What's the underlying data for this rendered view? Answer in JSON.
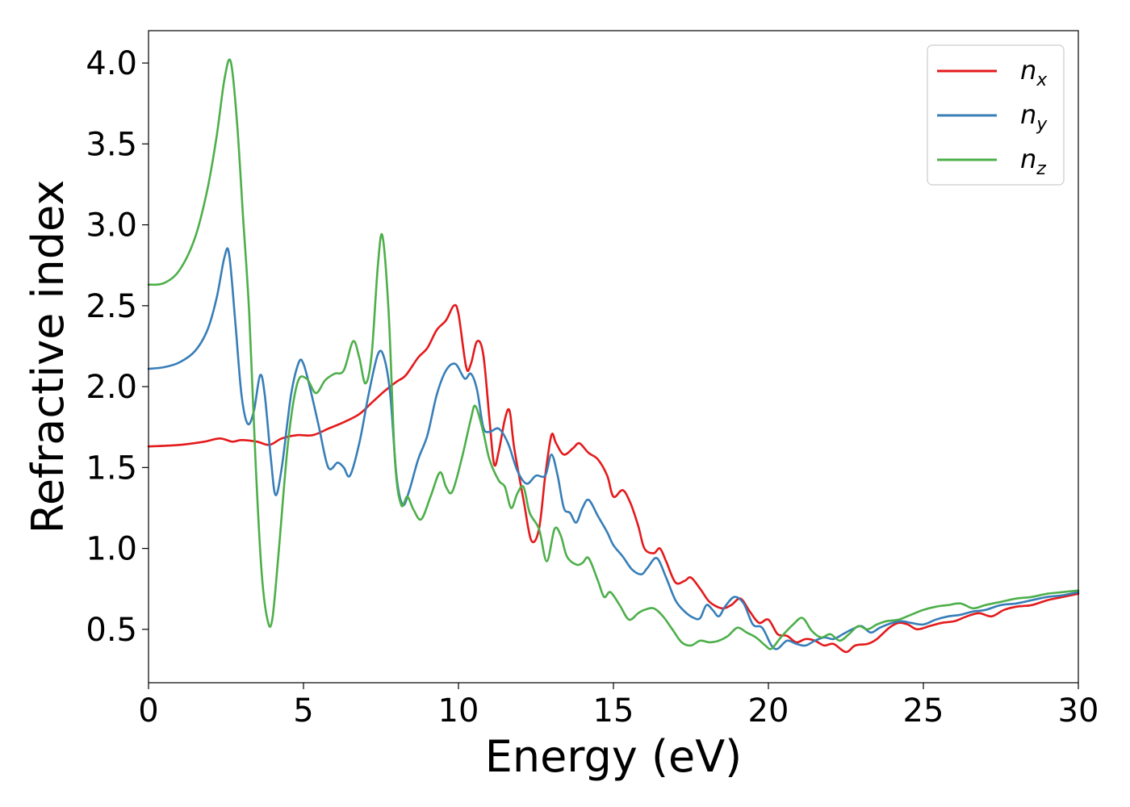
{
  "chart_data": {
    "type": "line",
    "title": "",
    "xlabel": "Energy (eV)",
    "ylabel": "Refractive index",
    "xlim": [
      0,
      30
    ],
    "ylim": [
      0.17,
      4.2
    ],
    "xticks": [
      0,
      5,
      10,
      15,
      20,
      25,
      30
    ],
    "xtick_labels": [
      "0",
      "5",
      "10",
      "15",
      "20",
      "25",
      "30"
    ],
    "yticks": [
      0.5,
      1.0,
      1.5,
      2.0,
      2.5,
      3.0,
      3.5,
      4.0
    ],
    "ytick_labels": [
      "0.5",
      "1.0",
      "1.5",
      "2.0",
      "2.5",
      "3.0",
      "3.5",
      "4.0"
    ],
    "grid": false,
    "legend_position": "top-right",
    "series": [
      {
        "name": "n_x",
        "legend_main": "n",
        "legend_sub": "x",
        "color": "#e41a1c",
        "points": [
          [
            0,
            1.63
          ],
          [
            1,
            1.64
          ],
          [
            1.8,
            1.66
          ],
          [
            2.3,
            1.68
          ],
          [
            2.7,
            1.66
          ],
          [
            3.0,
            1.67
          ],
          [
            3.5,
            1.66
          ],
          [
            3.9,
            1.64
          ],
          [
            4.3,
            1.68
          ],
          [
            4.8,
            1.7
          ],
          [
            5.3,
            1.7
          ],
          [
            5.8,
            1.74
          ],
          [
            6.3,
            1.78
          ],
          [
            6.8,
            1.83
          ],
          [
            7.2,
            1.9
          ],
          [
            7.6,
            1.97
          ],
          [
            8.0,
            2.03
          ],
          [
            8.3,
            2.07
          ],
          [
            8.7,
            2.18
          ],
          [
            9.0,
            2.24
          ],
          [
            9.3,
            2.35
          ],
          [
            9.6,
            2.41
          ],
          [
            9.85,
            2.5
          ],
          [
            10.0,
            2.45
          ],
          [
            10.25,
            2.12
          ],
          [
            10.4,
            2.14
          ],
          [
            10.6,
            2.28
          ],
          [
            10.8,
            2.2
          ],
          [
            11.0,
            1.8
          ],
          [
            11.15,
            1.52
          ],
          [
            11.3,
            1.6
          ],
          [
            11.5,
            1.8
          ],
          [
            11.65,
            1.85
          ],
          [
            11.8,
            1.62
          ],
          [
            12.1,
            1.3
          ],
          [
            12.35,
            1.05
          ],
          [
            12.6,
            1.12
          ],
          [
            12.8,
            1.45
          ],
          [
            13.0,
            1.7
          ],
          [
            13.15,
            1.65
          ],
          [
            13.4,
            1.58
          ],
          [
            13.7,
            1.62
          ],
          [
            13.9,
            1.65
          ],
          [
            14.2,
            1.59
          ],
          [
            14.5,
            1.55
          ],
          [
            14.8,
            1.45
          ],
          [
            15.0,
            1.32
          ],
          [
            15.3,
            1.36
          ],
          [
            15.55,
            1.28
          ],
          [
            15.8,
            1.14
          ],
          [
            16.0,
            1.0
          ],
          [
            16.3,
            0.97
          ],
          [
            16.5,
            1.0
          ],
          [
            16.7,
            0.92
          ],
          [
            17.0,
            0.79
          ],
          [
            17.3,
            0.8
          ],
          [
            17.5,
            0.82
          ],
          [
            17.8,
            0.75
          ],
          [
            18.1,
            0.67
          ],
          [
            18.5,
            0.63
          ],
          [
            18.8,
            0.65
          ],
          [
            19.1,
            0.69
          ],
          [
            19.4,
            0.61
          ],
          [
            19.7,
            0.54
          ],
          [
            20.0,
            0.56
          ],
          [
            20.3,
            0.47
          ],
          [
            20.6,
            0.46
          ],
          [
            20.9,
            0.42
          ],
          [
            21.2,
            0.44
          ],
          [
            21.5,
            0.43
          ],
          [
            21.8,
            0.4
          ],
          [
            22.1,
            0.41
          ],
          [
            22.5,
            0.36
          ],
          [
            22.8,
            0.4
          ],
          [
            23.2,
            0.41
          ],
          [
            23.5,
            0.44
          ],
          [
            23.9,
            0.51
          ],
          [
            24.2,
            0.54
          ],
          [
            24.5,
            0.53
          ],
          [
            24.8,
            0.5
          ],
          [
            25.2,
            0.52
          ],
          [
            25.6,
            0.54
          ],
          [
            26.0,
            0.55
          ],
          [
            26.4,
            0.58
          ],
          [
            26.8,
            0.6
          ],
          [
            27.2,
            0.58
          ],
          [
            27.6,
            0.62
          ],
          [
            28.0,
            0.64
          ],
          [
            28.5,
            0.65
          ],
          [
            29.0,
            0.68
          ],
          [
            29.5,
            0.7
          ],
          [
            30.0,
            0.72
          ]
        ]
      },
      {
        "name": "n_y",
        "legend_main": "n",
        "legend_sub": "y",
        "color": "#377eb8",
        "points": [
          [
            0,
            2.11
          ],
          [
            0.5,
            2.12
          ],
          [
            1.0,
            2.15
          ],
          [
            1.5,
            2.22
          ],
          [
            1.9,
            2.35
          ],
          [
            2.2,
            2.55
          ],
          [
            2.45,
            2.8
          ],
          [
            2.6,
            2.82
          ],
          [
            2.8,
            2.4
          ],
          [
            3.0,
            1.95
          ],
          [
            3.2,
            1.77
          ],
          [
            3.4,
            1.85
          ],
          [
            3.6,
            2.07
          ],
          [
            3.75,
            1.95
          ],
          [
            3.95,
            1.55
          ],
          [
            4.1,
            1.33
          ],
          [
            4.3,
            1.5
          ],
          [
            4.6,
            1.95
          ],
          [
            4.85,
            2.15
          ],
          [
            5.0,
            2.14
          ],
          [
            5.2,
            2.0
          ],
          [
            5.5,
            1.75
          ],
          [
            5.8,
            1.5
          ],
          [
            6.1,
            1.53
          ],
          [
            6.3,
            1.5
          ],
          [
            6.5,
            1.45
          ],
          [
            6.8,
            1.65
          ],
          [
            7.1,
            1.95
          ],
          [
            7.4,
            2.2
          ],
          [
            7.6,
            2.18
          ],
          [
            7.8,
            1.95
          ],
          [
            8.0,
            1.45
          ],
          [
            8.2,
            1.27
          ],
          [
            8.4,
            1.35
          ],
          [
            8.7,
            1.55
          ],
          [
            9.0,
            1.7
          ],
          [
            9.3,
            1.95
          ],
          [
            9.6,
            2.1
          ],
          [
            9.9,
            2.14
          ],
          [
            10.2,
            2.05
          ],
          [
            10.4,
            2.08
          ],
          [
            10.6,
            1.98
          ],
          [
            10.8,
            1.75
          ],
          [
            11.0,
            1.72
          ],
          [
            11.3,
            1.74
          ],
          [
            11.6,
            1.65
          ],
          [
            11.9,
            1.48
          ],
          [
            12.2,
            1.4
          ],
          [
            12.5,
            1.45
          ],
          [
            12.8,
            1.45
          ],
          [
            13.0,
            1.58
          ],
          [
            13.2,
            1.45
          ],
          [
            13.4,
            1.25
          ],
          [
            13.6,
            1.22
          ],
          [
            13.8,
            1.16
          ],
          [
            14.0,
            1.25
          ],
          [
            14.2,
            1.3
          ],
          [
            14.5,
            1.2
          ],
          [
            14.8,
            1.1
          ],
          [
            15.0,
            1.02
          ],
          [
            15.3,
            0.95
          ],
          [
            15.6,
            0.87
          ],
          [
            15.9,
            0.84
          ],
          [
            16.1,
            0.88
          ],
          [
            16.4,
            0.94
          ],
          [
            16.7,
            0.82
          ],
          [
            17.0,
            0.68
          ],
          [
            17.3,
            0.61
          ],
          [
            17.6,
            0.57
          ],
          [
            17.8,
            0.57
          ],
          [
            18.0,
            0.65
          ],
          [
            18.2,
            0.62
          ],
          [
            18.4,
            0.58
          ],
          [
            18.6,
            0.64
          ],
          [
            18.9,
            0.7
          ],
          [
            19.2,
            0.66
          ],
          [
            19.5,
            0.53
          ],
          [
            19.8,
            0.51
          ],
          [
            20.1,
            0.4
          ],
          [
            20.3,
            0.38
          ],
          [
            20.6,
            0.43
          ],
          [
            20.9,
            0.41
          ],
          [
            21.2,
            0.4
          ],
          [
            21.5,
            0.43
          ],
          [
            21.8,
            0.45
          ],
          [
            22.1,
            0.44
          ],
          [
            22.4,
            0.47
          ],
          [
            22.7,
            0.5
          ],
          [
            23.0,
            0.52
          ],
          [
            23.3,
            0.48
          ],
          [
            23.6,
            0.51
          ],
          [
            24.0,
            0.54
          ],
          [
            24.3,
            0.55
          ],
          [
            24.6,
            0.54
          ],
          [
            25.0,
            0.53
          ],
          [
            25.4,
            0.56
          ],
          [
            25.8,
            0.58
          ],
          [
            26.2,
            0.59
          ],
          [
            26.6,
            0.61
          ],
          [
            27.0,
            0.62
          ],
          [
            27.5,
            0.65
          ],
          [
            28.0,
            0.66
          ],
          [
            28.5,
            0.68
          ],
          [
            29.0,
            0.7
          ],
          [
            29.5,
            0.71
          ],
          [
            30.0,
            0.73
          ]
        ]
      },
      {
        "name": "n_z",
        "legend_main": "n",
        "legend_sub": "z",
        "color": "#4daf4a",
        "points": [
          [
            0,
            2.63
          ],
          [
            0.5,
            2.64
          ],
          [
            1.0,
            2.72
          ],
          [
            1.5,
            2.92
          ],
          [
            1.9,
            3.22
          ],
          [
            2.2,
            3.55
          ],
          [
            2.45,
            3.9
          ],
          [
            2.65,
            4.01
          ],
          [
            2.85,
            3.65
          ],
          [
            3.05,
            3.05
          ],
          [
            3.25,
            2.45
          ],
          [
            3.45,
            1.55
          ],
          [
            3.65,
            0.85
          ],
          [
            3.85,
            0.55
          ],
          [
            4.0,
            0.57
          ],
          [
            4.2,
            0.98
          ],
          [
            4.5,
            1.65
          ],
          [
            4.8,
            2.02
          ],
          [
            5.1,
            2.05
          ],
          [
            5.4,
            1.96
          ],
          [
            5.7,
            2.04
          ],
          [
            6.0,
            2.08
          ],
          [
            6.3,
            2.1
          ],
          [
            6.6,
            2.28
          ],
          [
            6.8,
            2.18
          ],
          [
            7.0,
            2.02
          ],
          [
            7.2,
            2.2
          ],
          [
            7.4,
            2.75
          ],
          [
            7.55,
            2.93
          ],
          [
            7.75,
            2.45
          ],
          [
            7.95,
            1.55
          ],
          [
            8.15,
            1.27
          ],
          [
            8.35,
            1.32
          ],
          [
            8.55,
            1.24
          ],
          [
            8.8,
            1.18
          ],
          [
            9.1,
            1.32
          ],
          [
            9.4,
            1.47
          ],
          [
            9.6,
            1.38
          ],
          [
            9.8,
            1.35
          ],
          [
            10.1,
            1.55
          ],
          [
            10.4,
            1.8
          ],
          [
            10.55,
            1.88
          ],
          [
            10.8,
            1.72
          ],
          [
            11.0,
            1.55
          ],
          [
            11.3,
            1.42
          ],
          [
            11.5,
            1.38
          ],
          [
            11.7,
            1.25
          ],
          [
            11.9,
            1.34
          ],
          [
            12.1,
            1.38
          ],
          [
            12.3,
            1.22
          ],
          [
            12.6,
            1.12
          ],
          [
            12.85,
            0.92
          ],
          [
            13.1,
            1.12
          ],
          [
            13.3,
            1.08
          ],
          [
            13.5,
            0.95
          ],
          [
            13.8,
            0.9
          ],
          [
            14.0,
            0.91
          ],
          [
            14.2,
            0.94
          ],
          [
            14.5,
            0.8
          ],
          [
            14.7,
            0.7
          ],
          [
            14.9,
            0.73
          ],
          [
            15.2,
            0.65
          ],
          [
            15.5,
            0.56
          ],
          [
            15.8,
            0.6
          ],
          [
            16.0,
            0.62
          ],
          [
            16.3,
            0.63
          ],
          [
            16.6,
            0.58
          ],
          [
            16.9,
            0.5
          ],
          [
            17.2,
            0.42
          ],
          [
            17.5,
            0.4
          ],
          [
            17.8,
            0.43
          ],
          [
            18.1,
            0.42
          ],
          [
            18.4,
            0.43
          ],
          [
            18.7,
            0.46
          ],
          [
            19.0,
            0.51
          ],
          [
            19.3,
            0.48
          ],
          [
            19.6,
            0.45
          ],
          [
            19.9,
            0.4
          ],
          [
            20.1,
            0.38
          ],
          [
            20.4,
            0.45
          ],
          [
            20.8,
            0.53
          ],
          [
            21.1,
            0.57
          ],
          [
            21.4,
            0.49
          ],
          [
            21.7,
            0.45
          ],
          [
            22.0,
            0.47
          ],
          [
            22.3,
            0.43
          ],
          [
            22.6,
            0.47
          ],
          [
            22.9,
            0.52
          ],
          [
            23.2,
            0.5
          ],
          [
            23.5,
            0.53
          ],
          [
            23.8,
            0.55
          ],
          [
            24.2,
            0.56
          ],
          [
            24.6,
            0.59
          ],
          [
            25.0,
            0.62
          ],
          [
            25.4,
            0.64
          ],
          [
            25.8,
            0.65
          ],
          [
            26.2,
            0.66
          ],
          [
            26.6,
            0.63
          ],
          [
            27.0,
            0.65
          ],
          [
            27.5,
            0.67
          ],
          [
            28.0,
            0.69
          ],
          [
            28.5,
            0.7
          ],
          [
            29.0,
            0.72
          ],
          [
            29.5,
            0.73
          ],
          [
            30.0,
            0.74
          ]
        ]
      }
    ]
  }
}
